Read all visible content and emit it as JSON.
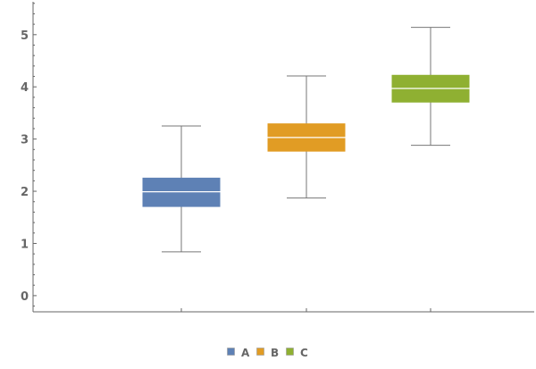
{
  "chart_data": {
    "type": "boxplot",
    "title": "",
    "xlabel": "",
    "ylabel": "",
    "ylim": [
      -0.31,
      5.63
    ],
    "yticks": [
      0,
      1,
      2,
      3,
      4,
      5
    ],
    "grid": false,
    "legend_position": "bottom",
    "series": [
      {
        "name": "A",
        "color": "#5e81b5",
        "min": 0.84,
        "q1": 1.7,
        "median": 1.99,
        "q3": 2.26,
        "max": 3.25
      },
      {
        "name": "B",
        "color": "#e19c24",
        "min": 1.87,
        "q1": 2.76,
        "median": 3.03,
        "q3": 3.3,
        "max": 4.21
      },
      {
        "name": "C",
        "color": "#8fb032",
        "min": 2.88,
        "q1": 3.7,
        "median": 3.97,
        "q3": 4.23,
        "max": 5.14
      }
    ]
  }
}
